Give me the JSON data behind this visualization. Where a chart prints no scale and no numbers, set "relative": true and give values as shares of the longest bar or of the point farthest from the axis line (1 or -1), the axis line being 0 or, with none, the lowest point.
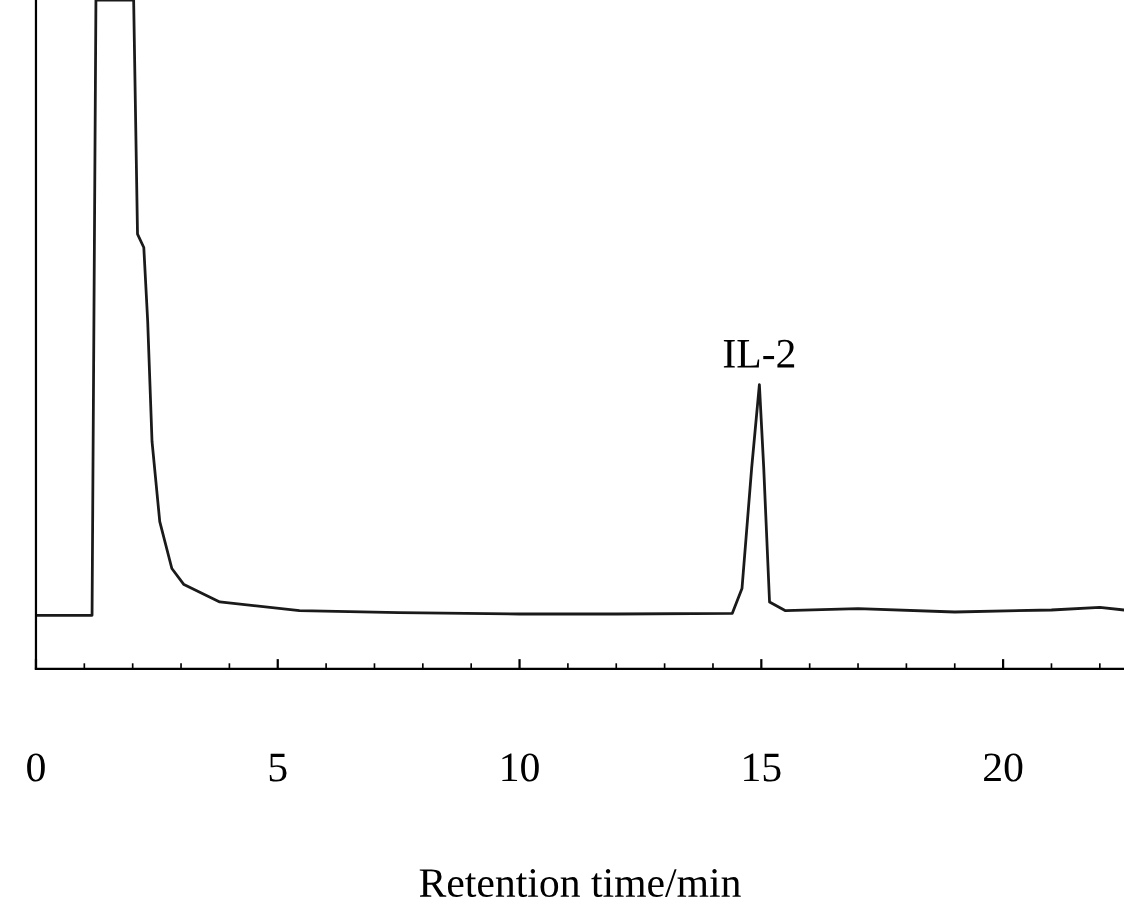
{
  "chart_data": {
    "type": "line",
    "relative": true,
    "xlabel": "Retention time/min",
    "xlim": [
      0,
      22.5
    ],
    "xticks": [
      0,
      5,
      10,
      15,
      20
    ],
    "tick_labels": "x",
    "grid": false,
    "legend": false,
    "marker": "none",
    "line_style": "solid",
    "annotations": [
      {
        "text": "IL-2",
        "x": 14.96,
        "y": 0.425
      }
    ],
    "series": [
      {
        "color": "#1a1a1a",
        "x": [
          0,
          1.16,
          1.24,
          2.02,
          2.1,
          2.23,
          2.31,
          2.4,
          2.56,
          2.81,
          3.06,
          3.8,
          5.45,
          7.5,
          10,
          12,
          14.4,
          14.6,
          14.8,
          14.96,
          15.05,
          15.17,
          15.5,
          17,
          19,
          21,
          22,
          22.5
        ],
        "values": [
          0.08,
          0.08,
          1,
          1,
          0.65,
          0.63,
          0.52,
          0.34,
          0.22,
          0.15,
          0.126,
          0.1,
          0.087,
          0.084,
          0.082,
          0.082,
          0.083,
          0.12,
          0.3,
          0.425,
          0.3,
          0.1,
          0.087,
          0.09,
          0.085,
          0.088,
          0.092,
          0.088
        ]
      }
    ]
  }
}
